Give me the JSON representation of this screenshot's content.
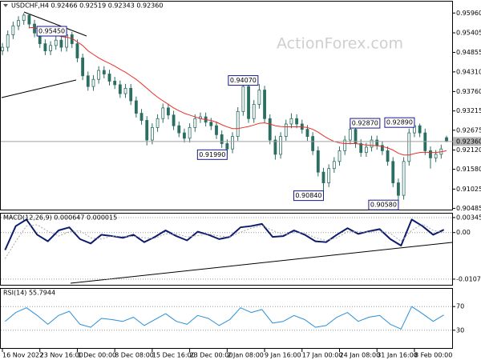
{
  "chart_data": [
    {
      "type": "candlestick",
      "title": "USDCHF,H4  0.92466 0.92519 0.92343 0.92360",
      "watermark": "ActionForex.com",
      "color": "#2b6e62",
      "grid": false,
      "ylim": [
        0.9045,
        0.9628
      ],
      "yticks": [
        {
          "value": 0.9596,
          "label": "0.95960"
        },
        0.95405,
        0.94855,
        {
          "value": 0.9431,
          "label": "0.94310"
        },
        {
          "value": 0.9376,
          "label": "0.93760"
        },
        0.93215,
        0.92675,
        {
          "value": 0.9212,
          "label": "0.92120"
        },
        {
          "value": 0.9158,
          "label": "0.91580"
        },
        0.91025,
        0.90485
      ],
      "categories": [
        "16 Nov 2022",
        null,
        null,
        null,
        null,
        null,
        null,
        "23 Nov 16:00",
        null,
        null,
        null,
        null,
        null,
        null,
        "1 Dec 00:00",
        null,
        null,
        null,
        null,
        null,
        null,
        "8 Dec 08:00",
        null,
        null,
        null,
        null,
        null,
        null,
        "15 Dec 16:00",
        null,
        null,
        null,
        null,
        null,
        null,
        "23 Dec 00:00",
        null,
        null,
        null,
        null,
        null,
        null,
        "2 Jan 08:00",
        null,
        null,
        null,
        null,
        null,
        null,
        "9 Jan 16:00",
        null,
        null,
        null,
        null,
        null,
        null,
        "17 Jan 00:00",
        null,
        null,
        null,
        null,
        null,
        null,
        "24 Jan 08:00",
        null,
        null,
        null,
        null,
        null,
        null,
        "31 Jan 16:00",
        null,
        null,
        null,
        null,
        null,
        null,
        "8 Feb 00:00",
        null,
        null,
        null,
        null,
        null,
        null
      ],
      "ohlc": [
        [
          0.949,
          0.9512,
          0.9478,
          0.95
        ],
        [
          0.95,
          0.9547,
          0.9488,
          0.9535
        ],
        [
          0.9535,
          0.9572,
          0.9523,
          0.956
        ],
        [
          0.956,
          0.9587,
          0.9548,
          0.9575
        ],
        [
          0.9575,
          0.9596,
          0.9563,
          0.959
        ],
        [
          0.959,
          0.9594,
          0.9553,
          0.9565
        ],
        [
          0.9565,
          0.9577,
          0.9528,
          0.954
        ],
        [
          0.954,
          0.9552,
          0.9498,
          0.951
        ],
        [
          0.951,
          0.9522,
          0.9478,
          0.949
        ],
        [
          0.949,
          0.9517,
          0.9478,
          0.9505
        ],
        [
          0.9505,
          0.9532,
          0.9493,
          0.952
        ],
        [
          0.952,
          0.9532,
          0.9488,
          0.95
        ],
        [
          0.95,
          0.9545,
          0.9488,
          0.9535
        ],
        [
          0.9535,
          0.9543,
          0.9498,
          0.951
        ],
        [
          0.951,
          0.9522,
          0.9458,
          0.947
        ],
        [
          0.947,
          0.9482,
          0.9408,
          0.942
        ],
        [
          0.942,
          0.9432,
          0.9378,
          0.939
        ],
        [
          0.939,
          0.9422,
          0.9378,
          0.941
        ],
        [
          0.941,
          0.9447,
          0.9398,
          0.9435
        ],
        [
          0.9435,
          0.9447,
          0.9413,
          0.9425
        ],
        [
          0.9425,
          0.9437,
          0.9393,
          0.9405
        ],
        [
          0.9405,
          0.9417,
          0.9383,
          0.9395
        ],
        [
          0.9395,
          0.9407,
          0.9358,
          0.937
        ],
        [
          0.937,
          0.9397,
          0.9358,
          0.9385
        ],
        [
          0.9385,
          0.9397,
          0.9338,
          0.935
        ],
        [
          0.935,
          0.9362,
          0.9303,
          0.9315
        ],
        [
          0.9315,
          0.9327,
          0.9283,
          0.9295
        ],
        [
          0.9295,
          0.9307,
          0.9225,
          0.924
        ],
        [
          0.924,
          0.9287,
          0.9228,
          0.9275
        ],
        [
          0.9275,
          0.9312,
          0.9263,
          0.93
        ],
        [
          0.93,
          0.9342,
          0.9288,
          0.933
        ],
        [
          0.933,
          0.9342,
          0.9298,
          0.931
        ],
        [
          0.931,
          0.9322,
          0.9268,
          0.928
        ],
        [
          0.928,
          0.9292,
          0.9248,
          0.926
        ],
        [
          0.926,
          0.9272,
          0.9233,
          0.9245
        ],
        [
          0.9245,
          0.9287,
          0.9233,
          0.9275
        ],
        [
          0.9275,
          0.9312,
          0.9263,
          0.93
        ],
        [
          0.93,
          0.9317,
          0.9288,
          0.9305
        ],
        [
          0.9305,
          0.9317,
          0.9278,
          0.929
        ],
        [
          0.929,
          0.9302,
          0.9268,
          0.928
        ],
        [
          0.928,
          0.9292,
          0.9243,
          0.9255
        ],
        [
          0.9255,
          0.9267,
          0.9218,
          0.923
        ],
        [
          0.923,
          0.9242,
          0.9199,
          0.9215
        ],
        [
          0.9215,
          0.9262,
          0.9203,
          0.925
        ],
        [
          0.925,
          0.9332,
          0.9238,
          0.932
        ],
        [
          0.932,
          0.9407,
          0.9308,
          0.939
        ],
        [
          0.939,
          0.9402,
          0.9288,
          0.93
        ],
        [
          0.93,
          0.9352,
          0.9288,
          0.934
        ],
        [
          0.934,
          0.9397,
          0.9328,
          0.938
        ],
        [
          0.938,
          0.9392,
          0.9288,
          0.93
        ],
        [
          0.93,
          0.9312,
          0.9228,
          0.924
        ],
        [
          0.924,
          0.9252,
          0.9185,
          0.92
        ],
        [
          0.92,
          0.9262,
          0.9188,
          0.925
        ],
        [
          0.925,
          0.9297,
          0.9238,
          0.9285
        ],
        [
          0.9285,
          0.9315,
          0.9273,
          0.93
        ],
        [
          0.93,
          0.9312,
          0.9273,
          0.9285
        ],
        [
          0.9285,
          0.9297,
          0.9258,
          0.927
        ],
        [
          0.927,
          0.9282,
          0.9238,
          0.925
        ],
        [
          0.925,
          0.9262,
          0.9198,
          0.921
        ],
        [
          0.921,
          0.9222,
          0.9138,
          0.915
        ],
        [
          0.915,
          0.9162,
          0.9084,
          0.912
        ],
        [
          0.912,
          0.9172,
          0.9108,
          0.916
        ],
        [
          0.916,
          0.9192,
          0.9148,
          0.918
        ],
        [
          0.918,
          0.9222,
          0.9168,
          0.921
        ],
        [
          0.921,
          0.9252,
          0.9198,
          0.924
        ],
        [
          0.924,
          0.9287,
          0.9228,
          0.927
        ],
        [
          0.927,
          0.9282,
          0.9218,
          0.923
        ],
        [
          0.923,
          0.9242,
          0.9193,
          0.9205
        ],
        [
          0.9205,
          0.9232,
          0.9193,
          0.922
        ],
        [
          0.922,
          0.9252,
          0.9208,
          0.924
        ],
        [
          0.924,
          0.9252,
          0.9213,
          0.9225
        ],
        [
          0.9225,
          0.9237,
          0.9198,
          0.921
        ],
        [
          0.921,
          0.9222,
          0.9168,
          0.918
        ],
        [
          0.918,
          0.9192,
          0.9108,
          0.912
        ],
        [
          0.912,
          0.9132,
          0.9058,
          0.9085
        ],
        [
          0.9085,
          0.9192,
          0.9073,
          0.918
        ],
        [
          0.918,
          0.9272,
          0.9168,
          0.926
        ],
        [
          0.926,
          0.9289,
          0.9248,
          0.928
        ],
        [
          0.928,
          0.9286,
          0.9248,
          0.926
        ],
        [
          0.926,
          0.9272,
          0.9198,
          0.921
        ],
        [
          0.921,
          0.9222,
          0.916,
          0.919
        ],
        [
          0.919,
          0.9212,
          0.9178,
          0.92
        ],
        [
          0.92,
          0.9227,
          0.9188,
          0.9215
        ],
        [
          0.92466,
          0.92519,
          0.92343,
          0.9236
        ]
      ],
      "series": [
        {
          "color": "#e8302a",
          "values": [
            null,
            null,
            null,
            null,
            null,
            0.9555,
            0.9555,
            0.955,
            0.9545,
            0.954,
            0.9535,
            0.953,
            0.9528,
            0.9525,
            0.9515,
            0.9505,
            0.949,
            0.948,
            0.947,
            0.9462,
            0.9455,
            0.9447,
            0.9438,
            0.943,
            0.942,
            0.941,
            0.9398,
            0.9385,
            0.9372,
            0.936,
            0.935,
            0.934,
            0.933,
            0.9322,
            0.9315,
            0.931,
            0.9305,
            0.93,
            0.9297,
            0.9295,
            0.929,
            0.9283,
            0.9277,
            0.9272,
            0.9272,
            0.9275,
            0.9278,
            0.9282,
            0.9287,
            0.9288,
            0.9285,
            0.928,
            0.9278,
            0.9277,
            0.9277,
            0.9277,
            0.9277,
            0.9275,
            0.927,
            0.9262,
            0.9252,
            0.9243,
            0.9236,
            0.9232,
            0.923,
            0.923,
            0.923,
            0.9228,
            0.9226,
            0.9225,
            0.9224,
            0.9222,
            0.9218,
            0.9212,
            0.9203,
            0.9198,
            0.9198,
            0.9202,
            0.9205,
            0.9206,
            0.9205,
            0.9205,
            0.9207,
            0.921
          ]
        }
      ],
      "last_price": {
        "value": 0.9236,
        "label": "0.92360"
      },
      "annotations": [
        {
          "bar": 12,
          "value": 0.9545,
          "label": "0.95450"
        },
        {
          "bar": 45,
          "value": 0.9407,
          "label": "0.94070"
        },
        {
          "bar": 42,
          "value": 0.9199,
          "label": "0.91990"
        },
        {
          "bar": 65,
          "value": 0.9287,
          "label": "0.92870"
        },
        {
          "bar": 77,
          "value": 0.9289,
          "label": "0.92890"
        },
        {
          "bar": 60,
          "value": 0.9084,
          "label": "0.90840"
        },
        {
          "bar": 74,
          "value": 0.9058,
          "label": "0.90580"
        }
      ]
    },
    {
      "type": "line",
      "title": "MACD(12,26,9) 0.000647 0.000015",
      "grid": true,
      "ylim": [
        -0.012,
        0.00436
      ],
      "yticks": [
        0.003451,
        {
          "value": 0,
          "label": "0.00"
        },
        -0.0107
      ],
      "series": [
        {
          "color": "#0c1b6e",
          "width": 2,
          "values": [
            -0.004,
            0.0015,
            0.003,
            -0.0005,
            -0.002,
            0.0005,
            0.0012,
            -0.0015,
            -0.0025,
            -0.0005,
            -0.0008,
            -0.0012,
            -0.0005,
            -0.0022,
            -0.001,
            0.0005,
            -0.0008,
            -0.0018,
            0.0002,
            -0.0005,
            -0.0015,
            -0.001,
            0.0012,
            0.0015,
            0.002,
            -0.001,
            -0.0008,
            0.0005,
            -0.0005,
            -0.002,
            -0.0022,
            -0.0005,
            0.001,
            -0.0003,
            0.0003,
            0.0008,
            -0.0015,
            -0.003,
            0.003,
            0.0015,
            -0.0005,
            0.000647
          ]
        },
        {
          "color": "#a8a8a8",
          "width": 1,
          "style": "dotted",
          "values": [
            -0.006,
            -0.002,
            0.0015,
            0.0018,
            0.0003,
            -0.0008,
            0.0002,
            0.0004,
            -0.0012,
            -0.0015,
            -0.0008,
            -0.0009,
            -0.0009,
            -0.0012,
            -0.0013,
            -0.0003,
            -0.0003,
            -0.001,
            -0.0007,
            -0.0003,
            -0.0008,
            -0.001,
            0.0001,
            0.001,
            0.0016,
            0.0005,
            -0.0005,
            0,
            -0.0001,
            -0.0012,
            -0.0018,
            -0.0012,
            0.0002,
            0.0002,
            0.0001,
            0.0005,
            -0.0002,
            -0.002,
            0.0005,
            0.002,
            0.0005,
            1.5e-05
          ]
        }
      ]
    },
    {
      "type": "line",
      "title": "RSI(14) 55.7944",
      "grid": true,
      "ylim": [
        0,
        100
      ],
      "yticks": [
        70,
        30
      ],
      "series": [
        {
          "color": "#2a8fd8",
          "width": 1,
          "values": [
            45,
            60,
            68,
            55,
            40,
            55,
            62,
            40,
            35,
            50,
            48,
            45,
            52,
            38,
            48,
            58,
            45,
            40,
            55,
            50,
            38,
            48,
            68,
            60,
            65,
            42,
            45,
            55,
            48,
            35,
            38,
            52,
            60,
            45,
            52,
            55,
            40,
            32,
            70,
            58,
            45,
            55.7944
          ]
        }
      ]
    }
  ]
}
